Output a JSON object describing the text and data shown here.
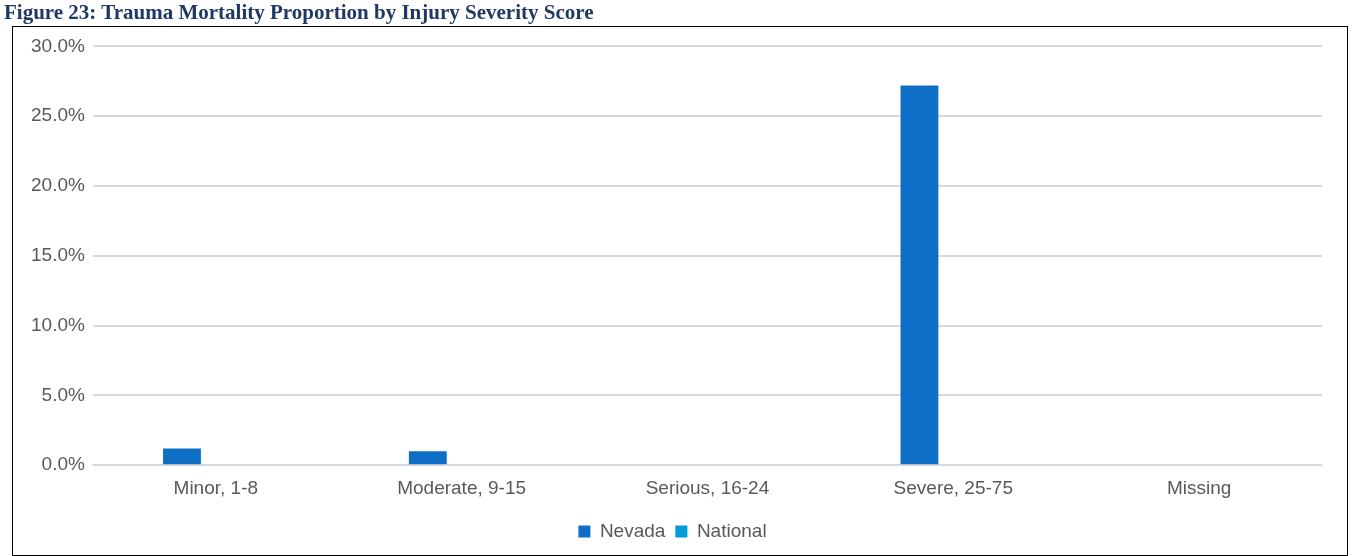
{
  "chart_data": {
    "type": "bar",
    "title": "Figure 23: Trauma Mortality Proportion by Injury Severity Score",
    "categories": [
      "Minor, 1-8",
      "Moderate, 9-15",
      "Serious, 16-24",
      "Severe, 25-75",
      "Missing"
    ],
    "series": [
      {
        "name": "Nevada",
        "color": "#0f6fc6",
        "values": [
          1.2,
          1.0,
          0,
          27.2,
          0
        ]
      },
      {
        "name": "National",
        "color": "#009dd9",
        "values": [
          0,
          0,
          0,
          0,
          0
        ]
      }
    ],
    "ylim": [
      0,
      30
    ],
    "yticks": [
      {
        "value": 0,
        "label": "0.0%"
      },
      {
        "value": 5,
        "label": "5.0%"
      },
      {
        "value": 10,
        "label": "10.0%"
      },
      {
        "value": 15,
        "label": "15.0%"
      },
      {
        "value": 20,
        "label": "20.0%"
      },
      {
        "value": 25,
        "label": "25.0%"
      },
      {
        "value": 30,
        "label": "30.0%"
      }
    ],
    "grid": "y",
    "legend": "bottom"
  }
}
